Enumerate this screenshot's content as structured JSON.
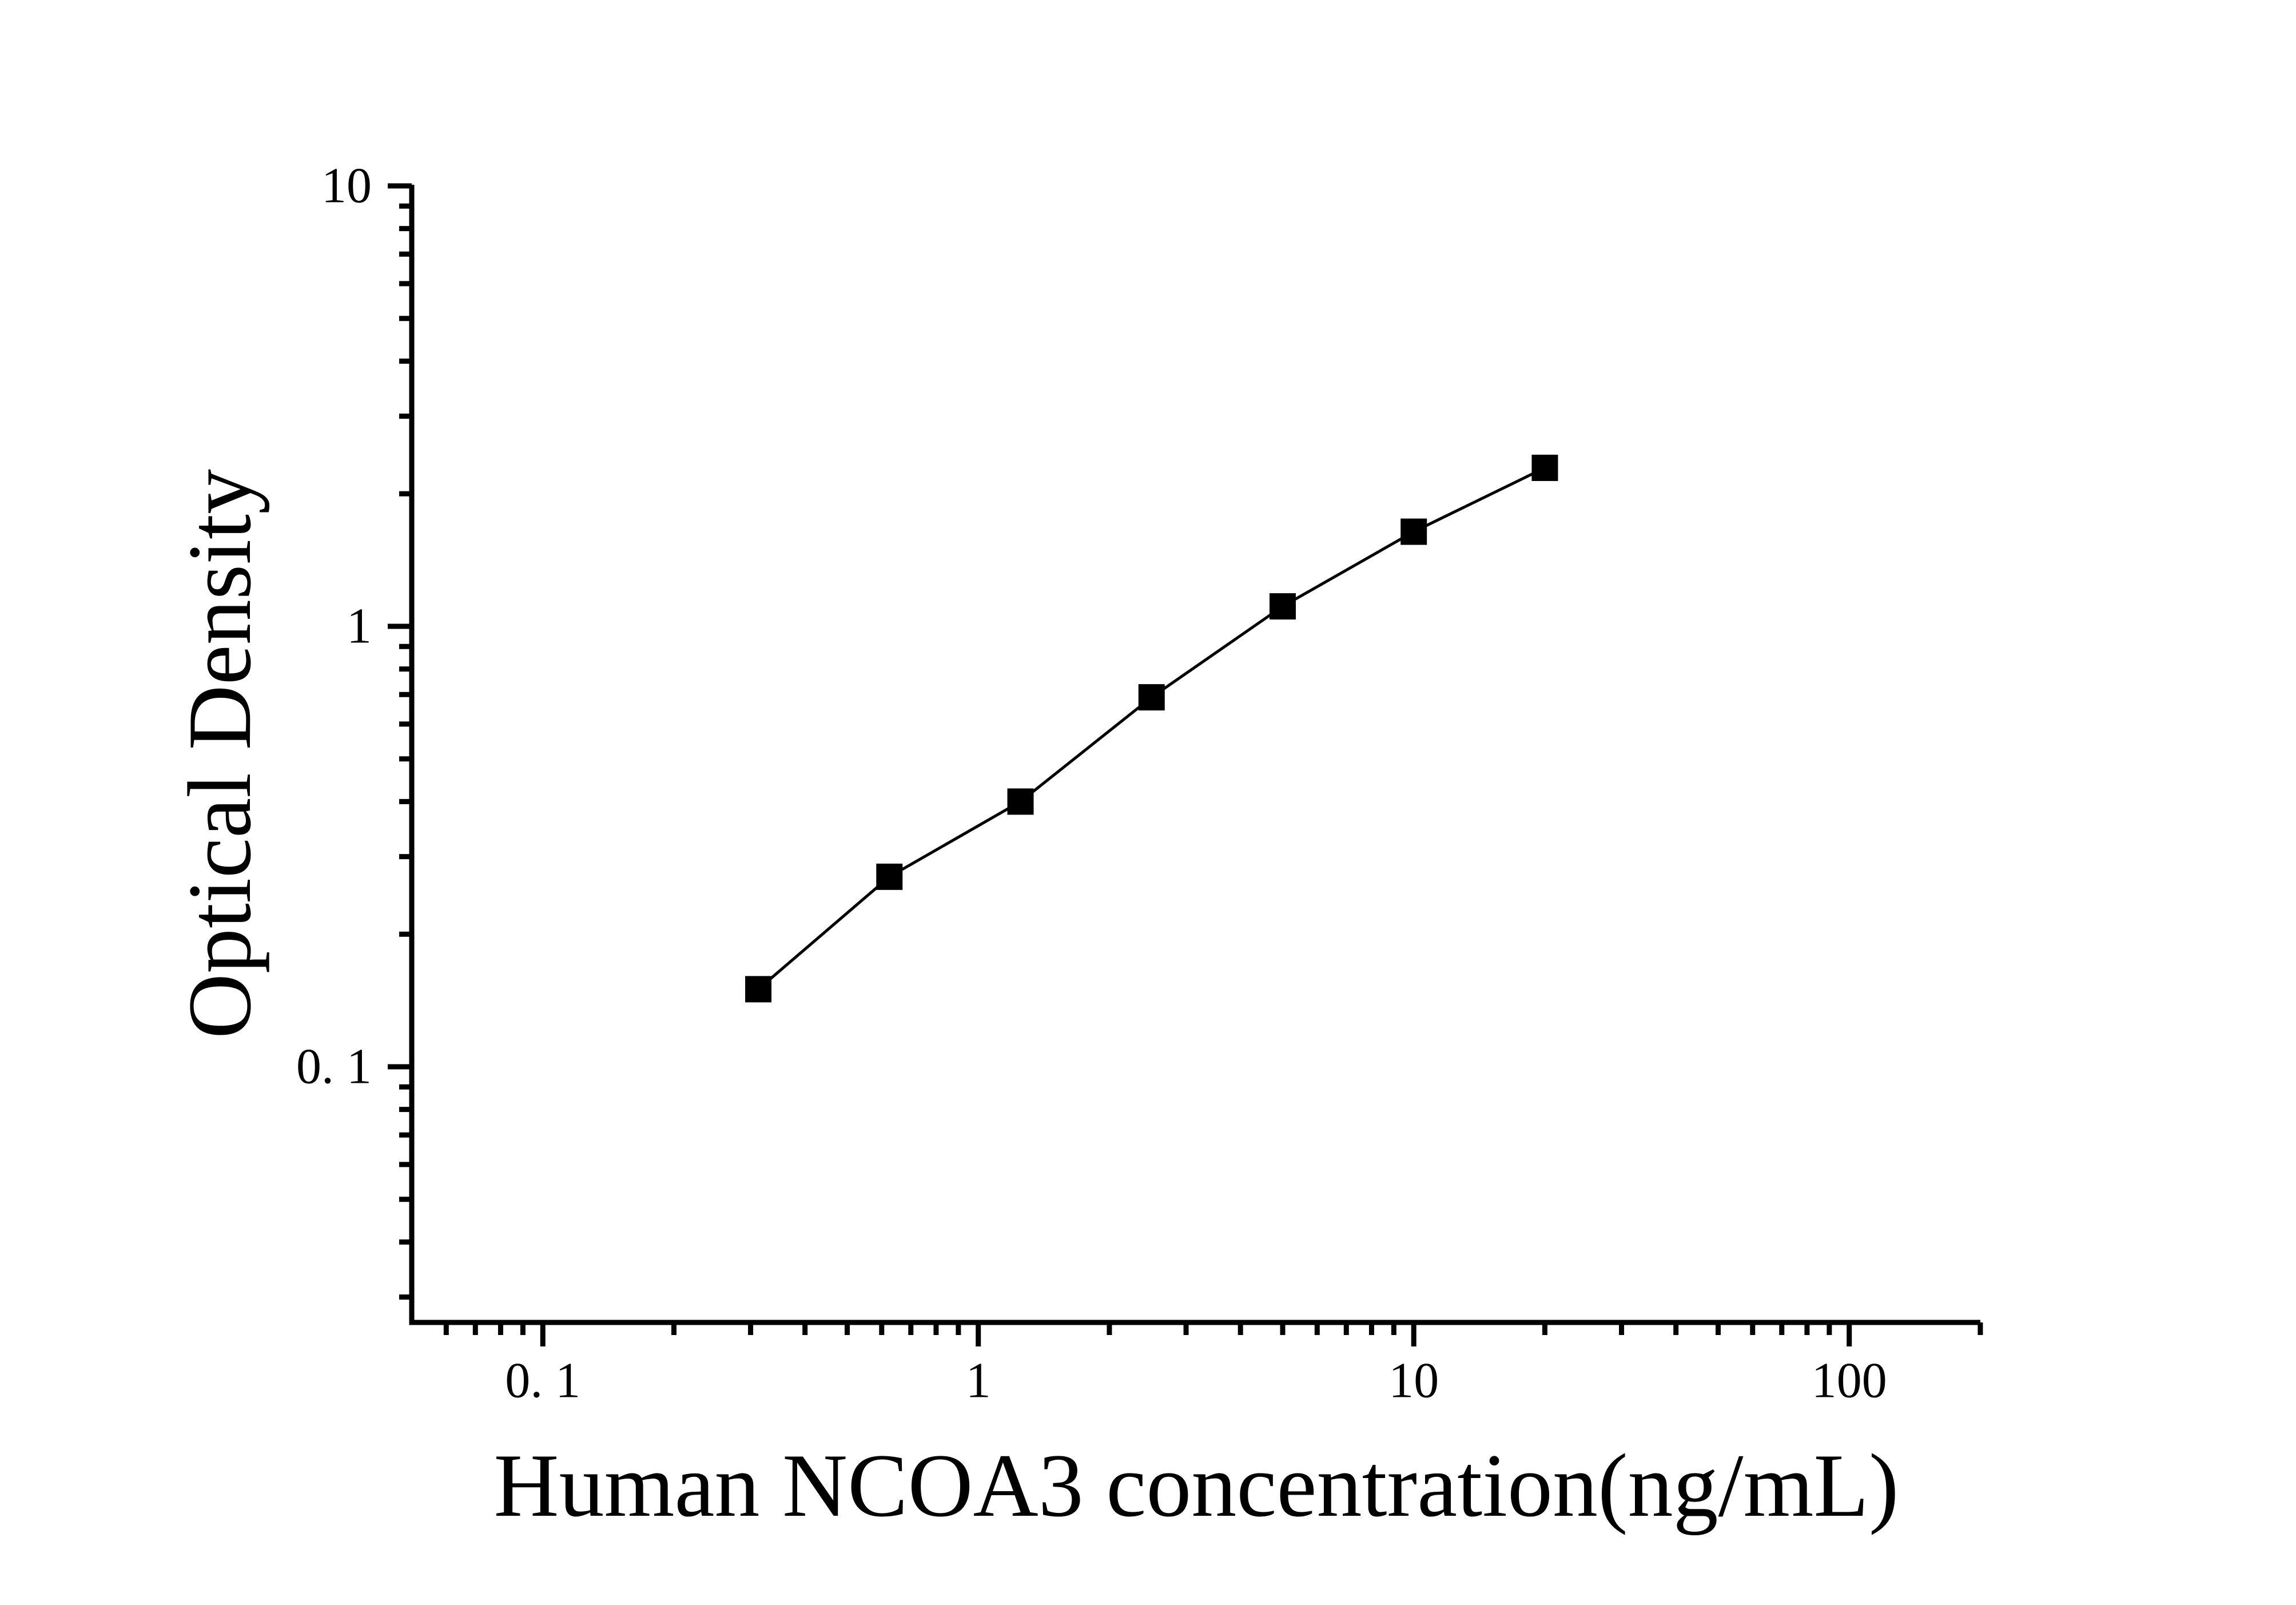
{
  "chart_data": {
    "type": "line",
    "xlabel": "Human NCOA3 concentration(ng/mL)",
    "ylabel": "Optical Density",
    "x_scale": "log",
    "y_scale": "log",
    "x": [
      0.3125,
      0.625,
      1.25,
      2.5,
      5,
      10,
      20
    ],
    "y": [
      0.15,
      0.27,
      0.4,
      0.69,
      1.11,
      1.64,
      2.29
    ],
    "x_range": [
      0.05,
      200
    ],
    "y_range": [
      0.026,
      10
    ],
    "x_major_ticks": [
      0.1,
      1,
      10,
      100
    ],
    "x_tick_labels": [
      "0. 1",
      "1",
      "10",
      "100"
    ],
    "y_major_ticks": [
      10,
      1,
      0.1
    ],
    "y_tick_labels": [
      "10",
      "1",
      "0. 1"
    ],
    "marker": "filled-square",
    "line_style": "solid",
    "grid": "off",
    "legend": "none",
    "colors": {
      "foreground": "#000000",
      "background": "#ffffff"
    }
  }
}
